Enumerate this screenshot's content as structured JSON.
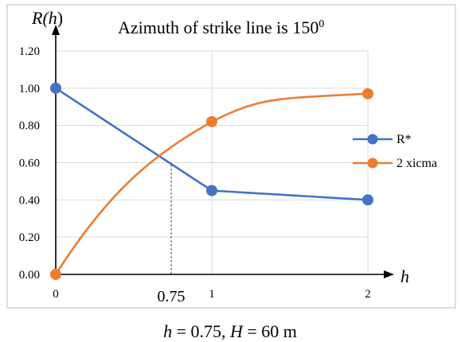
{
  "chart_data": {
    "type": "line",
    "title_main": "Azimuth of strike line is 150",
    "title_sup": "0",
    "ylabel": "R(h)",
    "ylabel_prefix": "R(",
    "ylabel_var": "h",
    "ylabel_suffix": ")",
    "xlabel": "h",
    "x_ticks": [
      "0",
      "1",
      "2"
    ],
    "y_ticks": [
      "0.00",
      "0.20",
      "0.40",
      "0.60",
      "0.80",
      "1.00",
      "1.20"
    ],
    "ylim": [
      0,
      1.2
    ],
    "grid": true,
    "legend_position": "right",
    "series": [
      {
        "name": "R*",
        "color": "#4472c4",
        "points": [
          [
            0,
            1.0
          ],
          [
            1,
            0.45
          ],
          [
            2,
            0.4
          ]
        ]
      },
      {
        "name": "2 xicma",
        "color": "#ed7d31",
        "points": [
          [
            0,
            0.0
          ],
          [
            1,
            0.82
          ],
          [
            2,
            0.97
          ]
        ]
      }
    ],
    "annotation": {
      "x_value": 0.75,
      "label": "0.75"
    }
  },
  "caption": {
    "h_var": "h",
    "h_text": " = 0.75, ",
    "H_var": "H",
    "H_text": " = 60 m"
  }
}
